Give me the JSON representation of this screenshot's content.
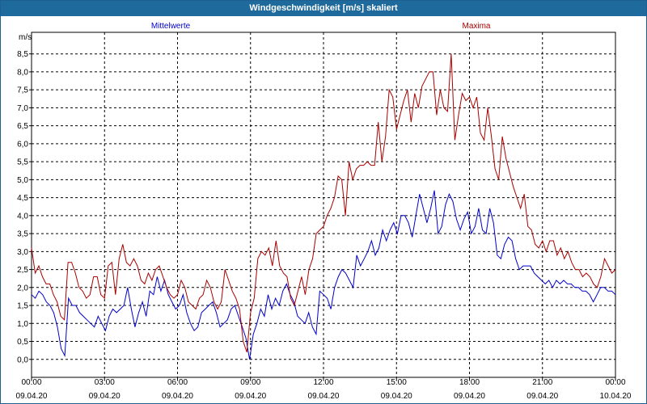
{
  "window": {
    "title": "Windgeschwindigkeit [m/s] skaliert"
  },
  "chart_data": {
    "type": "line",
    "title": "Windgeschwindigkeit [m/s] skaliert",
    "ylabel": "m/s",
    "xlabel": "",
    "ylim": [
      -0.5,
      9.1
    ],
    "xlim_hours": [
      0,
      24
    ],
    "grid": true,
    "y_ticks": [
      "0,0",
      "0,5",
      "1,0",
      "1,5",
      "2,0",
      "2,5",
      "3,0",
      "3,5",
      "4,0",
      "4,5",
      "5,0",
      "5,5",
      "6,0",
      "6,5",
      "7,0",
      "7,5",
      "8,0",
      "8,5"
    ],
    "x_ticks": [
      {
        "time": "00:00",
        "date": "09.04.20"
      },
      {
        "time": "03:00",
        "date": "09.04.20"
      },
      {
        "time": "06:00",
        "date": "09.04.20"
      },
      {
        "time": "09:00",
        "date": "09.04.20"
      },
      {
        "time": "12:00",
        "date": "09.04.20"
      },
      {
        "time": "15:00",
        "date": "09.04.20"
      },
      {
        "time": "18:00",
        "date": "09.04.20"
      },
      {
        "time": "21:00",
        "date": "09.04.20"
      },
      {
        "time": "00:00",
        "date": "10.04.20"
      }
    ],
    "series": [
      {
        "name": "Mittelwerte",
        "color": "#0000cc",
        "values": [
          1.8,
          1.7,
          1.9,
          1.8,
          1.6,
          1.5,
          1.3,
          0.9,
          0.3,
          0.1,
          1.7,
          1.5,
          1.5,
          1.3,
          1.2,
          1.1,
          1.0,
          0.9,
          1.2,
          1.0,
          0.8,
          1.2,
          1.4,
          1.3,
          1.4,
          1.5,
          2.0,
          1.4,
          0.9,
          1.3,
          1.6,
          1.2,
          1.9,
          1.8,
          2.3,
          1.9,
          2.2,
          1.8,
          1.6,
          1.4,
          1.5,
          1.8,
          1.3,
          1.0,
          0.8,
          0.9,
          1.3,
          1.4,
          1.5,
          1.6,
          1.3,
          0.9,
          1.0,
          1.1,
          1.4,
          1.5,
          1.2,
          0.9,
          0.6,
          0.0,
          0.7,
          1.0,
          1.4,
          1.2,
          1.8,
          1.4,
          1.7,
          1.5,
          1.9,
          2.1,
          1.8,
          1.6,
          1.2,
          1.1,
          1.0,
          1.3,
          0.9,
          0.7,
          1.9,
          1.8,
          1.7,
          1.4,
          2.0,
          2.3,
          2.5,
          2.4,
          2.2,
          2.0,
          2.9,
          2.6,
          2.8,
          3.0,
          3.3,
          2.9,
          3.1,
          3.6,
          3.3,
          3.6,
          3.8,
          3.5,
          4.0,
          4.0,
          3.8,
          3.4,
          4.0,
          4.6,
          4.2,
          3.8,
          4.2,
          4.7,
          3.5,
          3.7,
          4.3,
          4.6,
          4.4,
          3.9,
          3.6,
          3.9,
          4.1,
          3.5,
          3.7,
          4.2,
          3.6,
          3.5,
          4.2,
          3.8,
          2.9,
          2.8,
          3.2,
          3.4,
          3.3,
          2.8,
          2.5,
          2.6,
          2.6,
          2.6,
          2.4,
          2.3,
          2.2,
          2.1,
          2.2,
          2.0,
          2.2,
          2.1,
          2.2,
          2.1,
          2.1,
          2.0,
          2.0,
          1.9,
          1.9,
          1.8,
          1.6,
          1.8,
          2.0,
          2.0,
          1.9,
          1.9,
          1.8
        ]
      },
      {
        "name": "Maxima",
        "color": "#aa0000",
        "values": [
          3.1,
          2.4,
          2.6,
          2.3,
          2.1,
          2.1,
          1.8,
          1.6,
          1.2,
          1.1,
          2.7,
          2.7,
          2.4,
          2.0,
          1.9,
          1.7,
          1.8,
          2.3,
          2.3,
          1.8,
          1.7,
          2.6,
          2.7,
          1.8,
          2.8,
          3.2,
          2.7,
          2.6,
          2.8,
          2.6,
          2.2,
          2.1,
          2.4,
          2.2,
          2.5,
          2.6,
          2.3,
          2.0,
          1.8,
          1.7,
          1.8,
          2.2,
          2.0,
          1.6,
          1.5,
          1.4,
          1.7,
          1.8,
          2.2,
          2.0,
          1.6,
          1.4,
          1.6,
          2.5,
          2.2,
          1.9,
          1.7,
          1.4,
          0.5,
          0.2,
          1.3,
          1.7,
          2.8,
          3.0,
          2.9,
          3.1,
          2.6,
          3.3,
          2.6,
          2.4,
          2.3,
          1.7,
          1.5,
          1.9,
          2.3,
          1.8,
          2.5,
          2.8,
          3.5,
          3.6,
          3.7,
          4.0,
          4.2,
          4.5,
          5.1,
          5.0,
          4.0,
          5.5,
          5.0,
          5.3,
          5.4,
          5.4,
          5.5,
          5.4,
          5.4,
          6.6,
          5.5,
          6.2,
          7.5,
          7.3,
          6.4,
          6.8,
          7.2,
          7.5,
          6.6,
          7.4,
          7.0,
          7.6,
          7.8,
          8.0,
          8.0,
          6.8,
          7.5,
          7.0,
          6.9,
          8.5,
          6.1,
          6.8,
          7.4,
          7.2,
          7.3,
          7.0,
          7.3,
          6.3,
          6.1,
          7.0,
          6.2,
          5.3,
          5.0,
          6.2,
          5.6,
          5.2,
          4.8,
          4.5,
          4.2,
          4.6,
          3.7,
          3.6,
          3.2,
          3.1,
          3.3,
          3.0,
          3.3,
          3.3,
          2.9,
          3.1,
          2.8,
          3.0,
          2.7,
          2.5,
          2.5,
          2.3,
          2.4,
          2.3,
          2.1,
          2.0,
          2.3,
          2.8,
          2.6,
          2.4,
          2.5
        ]
      }
    ]
  }
}
